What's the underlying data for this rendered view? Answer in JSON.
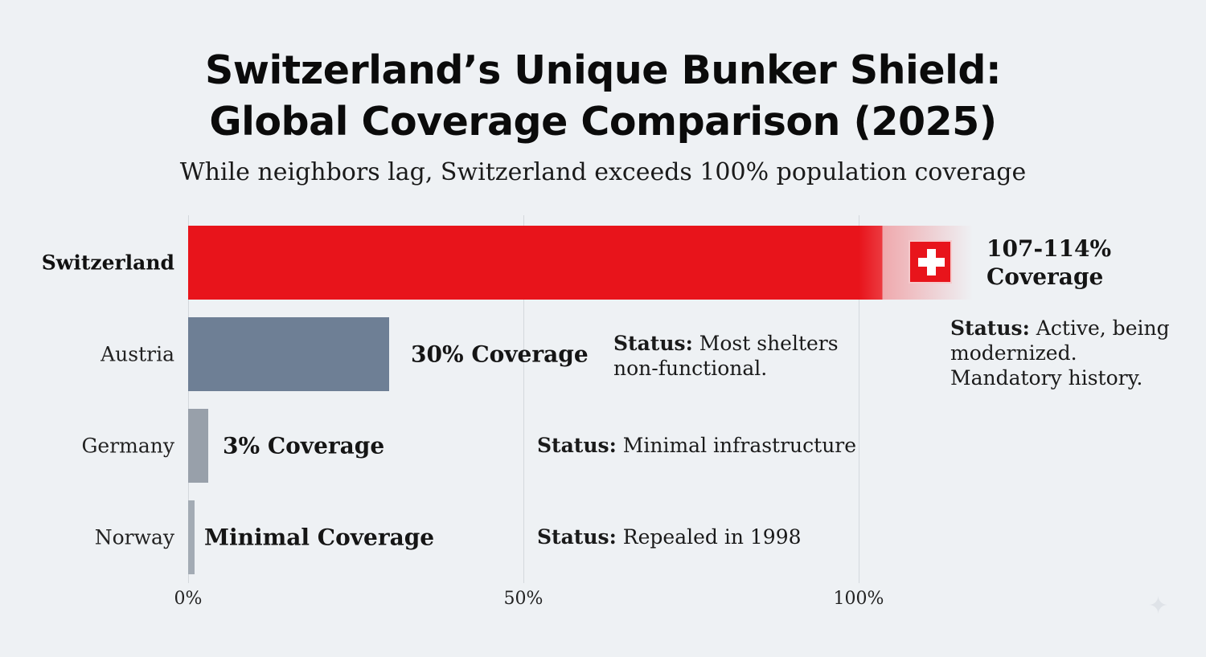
{
  "chart_data": {
    "type": "bar",
    "orientation": "horizontal",
    "title": [
      "Switzerland’s Unique Bunker Shield:",
      "Global Coverage Comparison (2025)"
    ],
    "subtitle": "While neighbors lag, Switzerland exceeds 100% population coverage",
    "categories": [
      "Switzerland",
      "Austria",
      "Germany",
      "Norway"
    ],
    "values": [
      114,
      30,
      3,
      1
    ],
    "value_range_switzerland": [
      107,
      114
    ],
    "value_labels": [
      "107-114% Coverage",
      "30% Coverage",
      "3% Coverage",
      "Minimal Coverage"
    ],
    "value_labels_lines": [
      [
        "107-114%",
        "Coverage"
      ]
    ],
    "status": [
      {
        "prefix": "Status:",
        "lines": [
          " Active, being",
          "modernized.",
          "Mandatory history."
        ]
      },
      {
        "prefix": "Status:",
        "lines": [
          " Most shelters",
          "non-functional."
        ]
      },
      {
        "prefix": "Status:",
        "lines": [
          " Minimal infrastructure"
        ]
      },
      {
        "prefix": "Status:",
        "lines": [
          " Repealed in 1998"
        ]
      }
    ],
    "xticks": [
      "0%",
      "50%",
      "100%"
    ],
    "xtick_values": [
      0,
      50,
      100
    ],
    "xlim": [
      0,
      150
    ],
    "grid": true,
    "colors": {
      "Switzerland": "#e8141b",
      "Austria": "#6e7f95",
      "Germany": "#98a0aa",
      "Norway": "#a3abb4"
    },
    "icons": {
      "switzerland": "swiss-flag-icon",
      "corner": "sparkle-icon"
    }
  }
}
